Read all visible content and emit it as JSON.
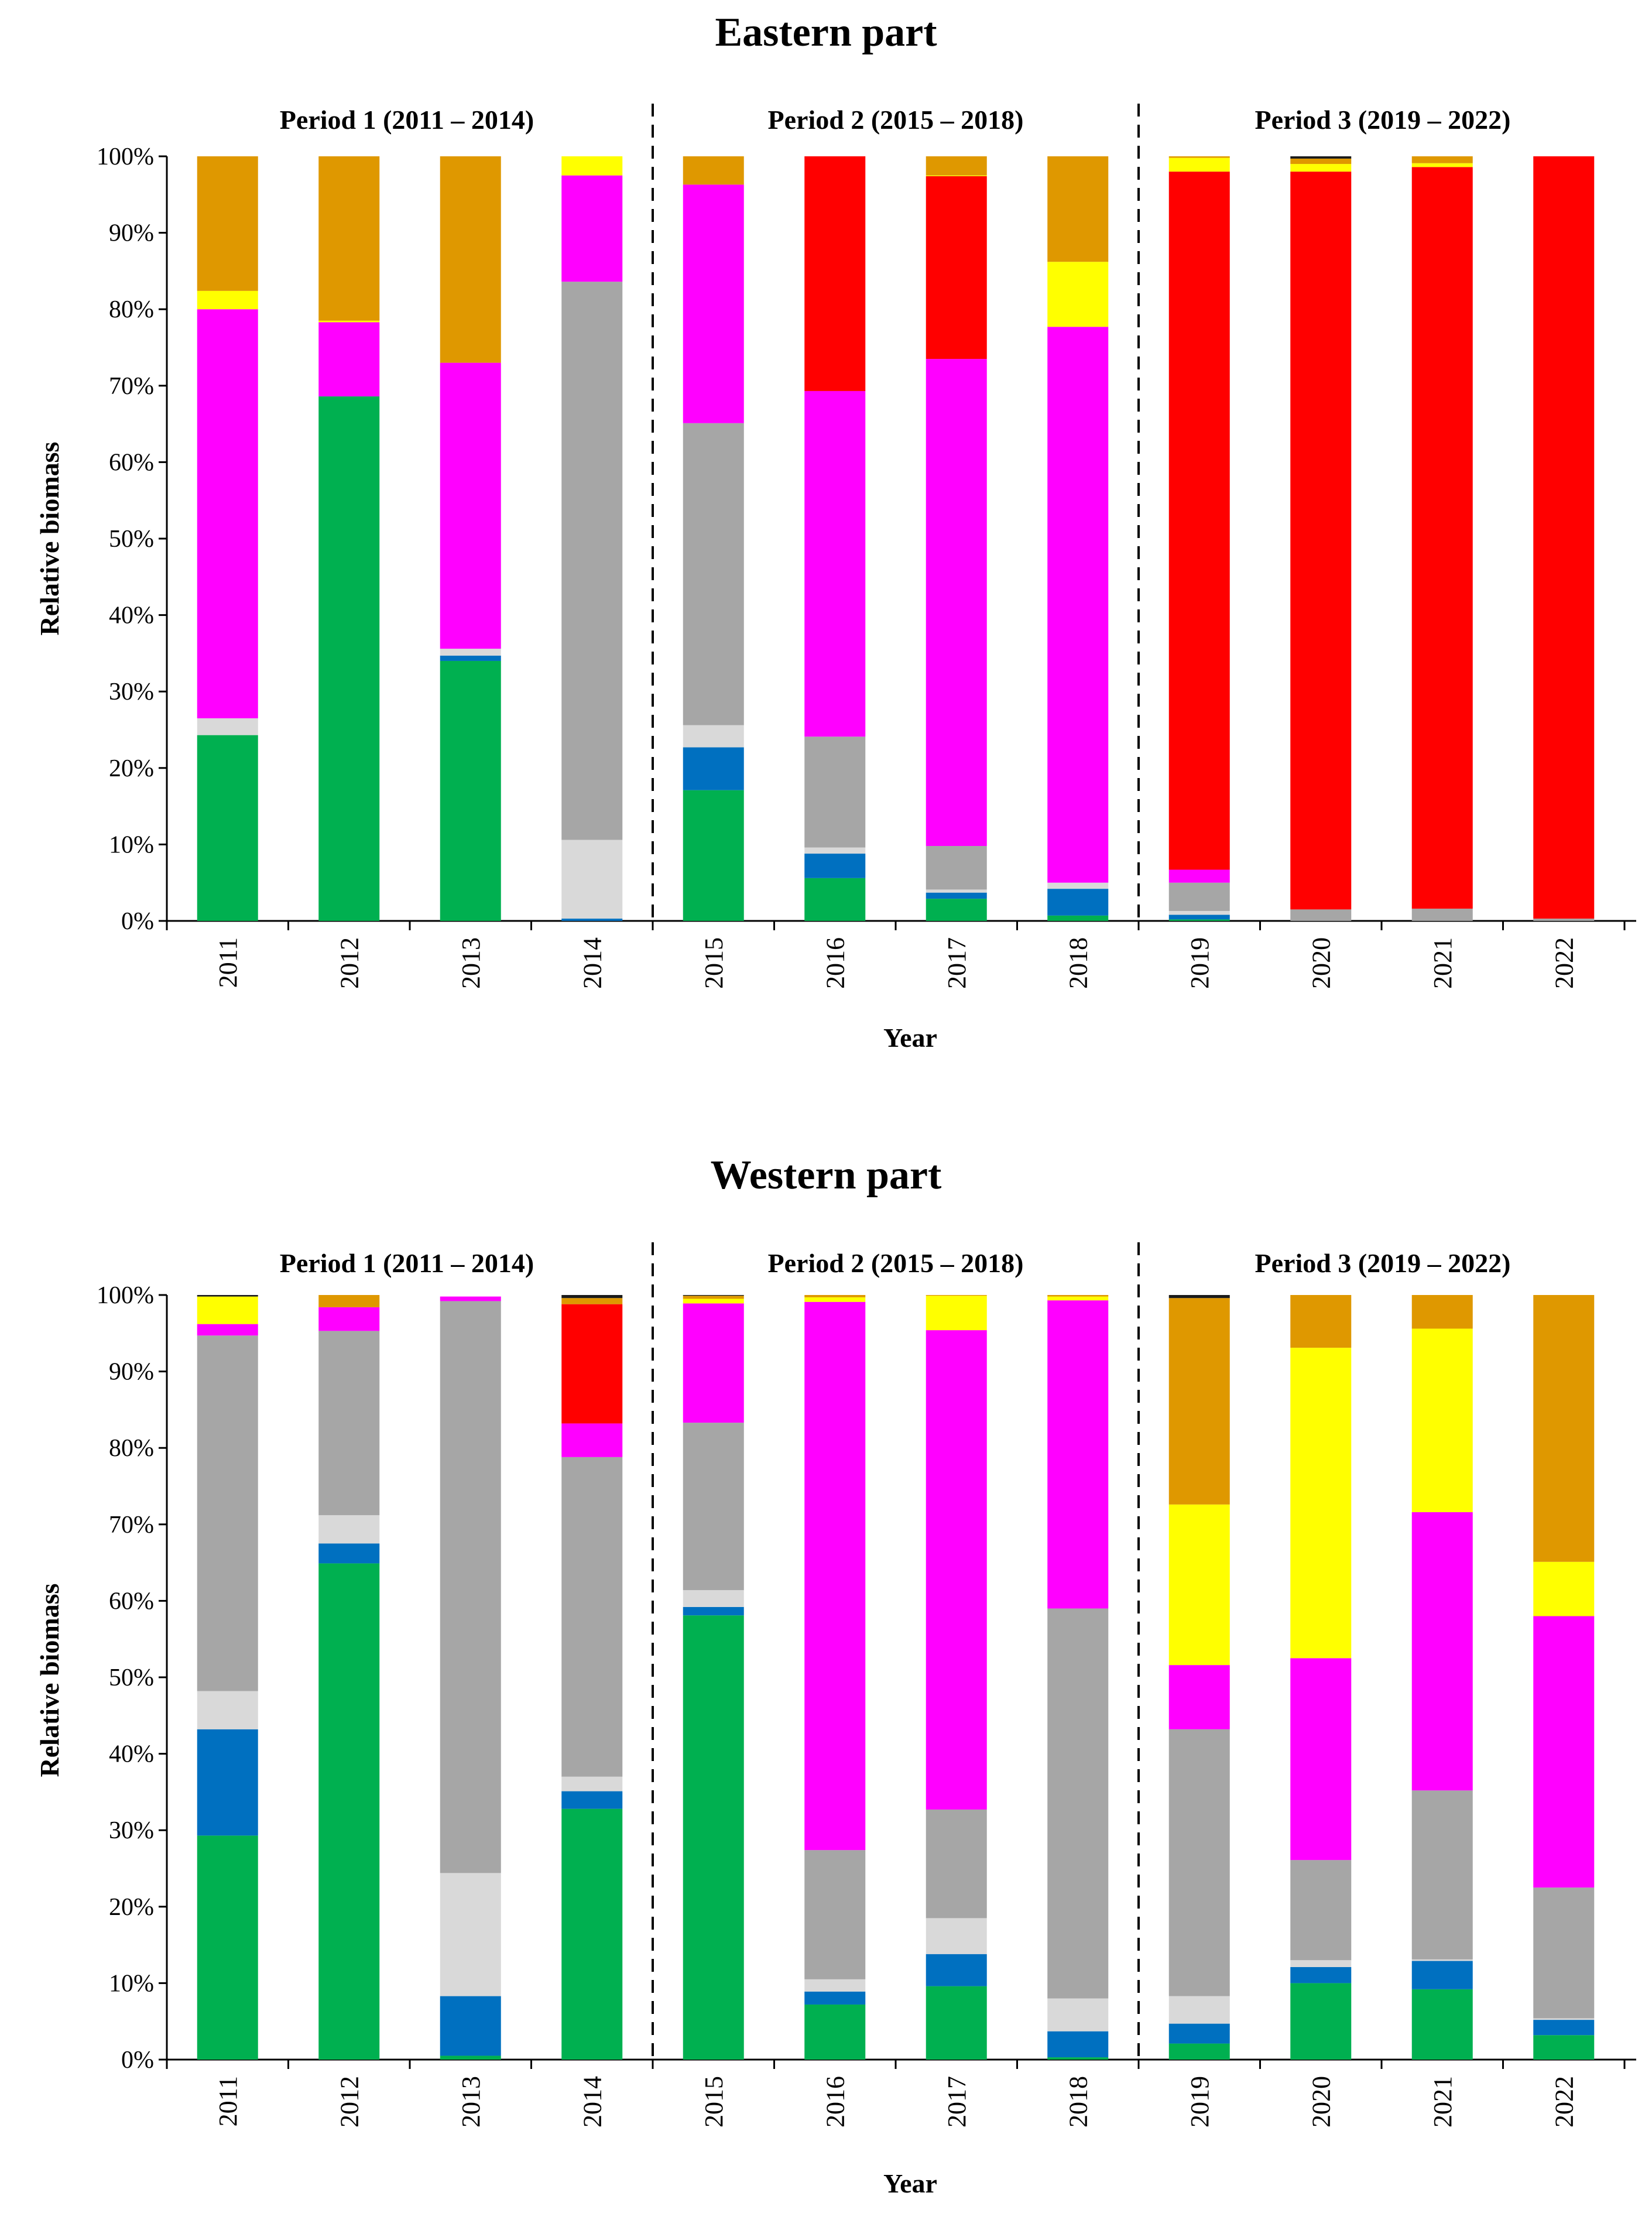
{
  "chart_data": [
    {
      "type": "bar",
      "stacked": true,
      "title": "Eastern part",
      "xlabel": "Year",
      "ylabel": "Relative biomass",
      "ylim": [
        0,
        100
      ],
      "yticks": [
        "0%",
        "10%",
        "20%",
        "30%",
        "40%",
        "50%",
        "60%",
        "70%",
        "80%",
        "90%",
        "100%"
      ],
      "categories": [
        "2011",
        "2012",
        "2013",
        "2014",
        "2015",
        "2016",
        "2017",
        "2018",
        "2019",
        "2020",
        "2021",
        "2022"
      ],
      "periods": [
        "Period 1 (2011 – 2014)",
        "Period 2 (2015 – 2018)",
        "Period 3 (2019 – 2022)"
      ],
      "legend": "none",
      "grid": false,
      "series": [
        {
          "color": "#00b050",
          "values": [
            24.3,
            68.6,
            34.0,
            0.0,
            17.1,
            5.6,
            2.9,
            0.7,
            0.2,
            0.0,
            0.0,
            0.0
          ]
        },
        {
          "color": "#0070c0",
          "values": [
            0.0,
            0.0,
            0.7,
            0.3,
            5.6,
            3.2,
            0.8,
            3.5,
            0.6,
            0.0,
            0.0,
            0.0
          ]
        },
        {
          "color": "#d9d9d9",
          "values": [
            2.2,
            0.0,
            0.9,
            10.3,
            2.9,
            0.8,
            0.4,
            0.8,
            0.5,
            0.0,
            0.0,
            0.0
          ]
        },
        {
          "color": "#a6a6a6",
          "values": [
            0.0,
            0.0,
            0.0,
            73.0,
            39.5,
            14.5,
            5.7,
            0.0,
            3.7,
            1.5,
            1.6,
            0.3
          ]
        },
        {
          "color": "#ff00ff",
          "values": [
            53.5,
            9.7,
            37.4,
            13.9,
            31.2,
            45.2,
            63.7,
            72.7,
            1.7,
            0.0,
            0.0,
            0.0
          ]
        },
        {
          "color": "#ff0000",
          "values": [
            0.0,
            0.0,
            0.0,
            0.0,
            0.0,
            30.7,
            23.9,
            0.0,
            91.3,
            96.5,
            97.0,
            99.7
          ]
        },
        {
          "color": "#ffff00",
          "values": [
            2.4,
            0.2,
            0.0,
            2.5,
            0.0,
            0.0,
            0.1,
            8.5,
            1.8,
            1.0,
            0.5,
            0.0
          ]
        },
        {
          "color": "#df9800",
          "values": [
            17.6,
            21.5,
            27.0,
            0.0,
            3.7,
            0.0,
            2.5,
            13.8,
            0.2,
            0.7,
            0.9,
            0.0
          ]
        },
        {
          "color": "#1a1a1a",
          "values": [
            0.0,
            0.0,
            0.0,
            0.0,
            0.0,
            0.0,
            0.0,
            0.0,
            0.0,
            0.3,
            0.0,
            0.0
          ]
        }
      ]
    },
    {
      "type": "bar",
      "stacked": true,
      "title": "Western part",
      "xlabel": "Year",
      "ylabel": "Relative biomass",
      "ylim": [
        0,
        100
      ],
      "yticks": [
        "0%",
        "10%",
        "20%",
        "30%",
        "40%",
        "50%",
        "60%",
        "70%",
        "80%",
        "90%",
        "100%"
      ],
      "categories": [
        "2011",
        "2012",
        "2013",
        "2014",
        "2015",
        "2016",
        "2017",
        "2018",
        "2019",
        "2020",
        "2021",
        "2022"
      ],
      "periods": [
        "Period 1 (2011 – 2014)",
        "Period 2 (2015 – 2018)",
        "Period 3 (2019 – 2022)"
      ],
      "legend": "none",
      "grid": false,
      "series": [
        {
          "color": "#00b050",
          "values": [
            29.3,
            64.9,
            0.5,
            32.8,
            58.1,
            7.2,
            9.6,
            0.3,
            2.1,
            10.0,
            9.2,
            3.2
          ]
        },
        {
          "color": "#0070c0",
          "values": [
            13.9,
            2.6,
            7.8,
            2.3,
            1.1,
            1.7,
            4.2,
            3.4,
            2.6,
            2.1,
            3.7,
            2.0
          ]
        },
        {
          "color": "#d9d9d9",
          "values": [
            5.0,
            3.7,
            16.1,
            1.9,
            2.2,
            1.6,
            4.7,
            4.3,
            3.6,
            0.9,
            0.2,
            0.2
          ]
        },
        {
          "color": "#a6a6a6",
          "values": [
            46.5,
            24.1,
            74.8,
            41.8,
            21.9,
            16.9,
            14.2,
            51.0,
            34.9,
            13.1,
            22.1,
            17.1
          ]
        },
        {
          "color": "#ff00ff",
          "values": [
            1.5,
            3.1,
            0.6,
            4.4,
            15.6,
            71.7,
            62.7,
            40.3,
            8.4,
            26.4,
            36.4,
            35.5
          ]
        },
        {
          "color": "#ff0000",
          "values": [
            0.0,
            0.0,
            0.0,
            15.6,
            0.0,
            0.0,
            0.0,
            0.0,
            0.0,
            0.0,
            0.0,
            0.0
          ]
        },
        {
          "color": "#ffff00",
          "values": [
            3.6,
            0.0,
            0.0,
            0.0,
            0.6,
            0.6,
            4.5,
            0.5,
            21.0,
            40.6,
            24.0,
            7.1
          ]
        },
        {
          "color": "#df9800",
          "values": [
            0.0,
            1.6,
            0.0,
            0.8,
            0.4,
            0.3,
            0.1,
            0.2,
            27.0,
            6.9,
            4.4,
            34.9
          ]
        },
        {
          "color": "#1a1a1a",
          "values": [
            0.2,
            0.0,
            0.0,
            0.4,
            0.1,
            0.0,
            0.0,
            0.0,
            0.4,
            0.0,
            0.0,
            0.0
          ]
        }
      ]
    }
  ]
}
